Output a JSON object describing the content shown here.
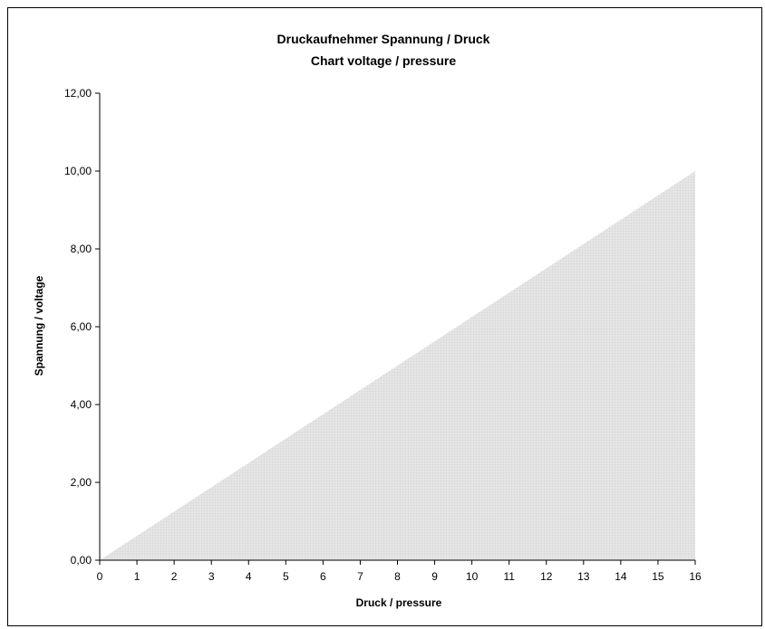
{
  "chart_data": {
    "type": "area",
    "title": "Druckaufnehmer Spannung / Druck",
    "subtitle": "Chart voltage / pressure",
    "xlabel": "Druck / pressure",
    "ylabel": "Spannung / voltage",
    "x": [
      0,
      16
    ],
    "y": [
      0,
      10
    ],
    "xlim": [
      0,
      16
    ],
    "ylim": [
      0,
      12
    ],
    "x_ticks": [
      "0",
      "1",
      "2",
      "3",
      "4",
      "5",
      "6",
      "7",
      "8",
      "9",
      "10",
      "11",
      "12",
      "13",
      "14",
      "15",
      "16"
    ],
    "y_ticks": [
      "0,00",
      "2,00",
      "4,00",
      "6,00",
      "8,00",
      "10,00",
      "12,00"
    ],
    "grid": false,
    "fill_color": "#e4e4e4",
    "axis_color": "#000000"
  }
}
